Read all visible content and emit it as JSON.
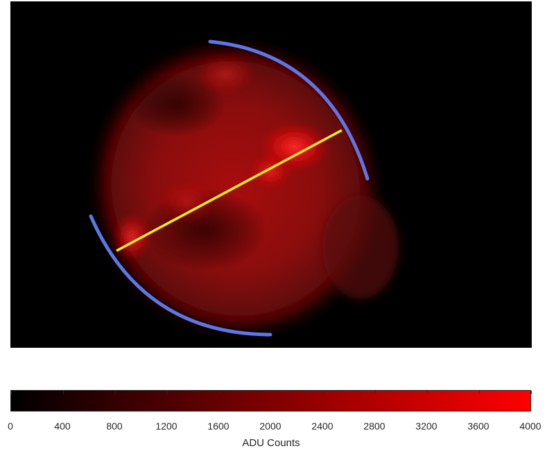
{
  "image": {
    "description_colors": {
      "nebula": "#c81414",
      "arc": "#5a78e6",
      "diameter_line": "#f5f01e",
      "background": "#000000"
    }
  },
  "colorbar": {
    "label": "ADU Counts",
    "min": 0,
    "max": 4000,
    "ticks": [
      "0",
      "400",
      "800",
      "1200",
      "1600",
      "2000",
      "2400",
      "2800",
      "3200",
      "3600",
      "4000"
    ],
    "gradient_start": "#000000",
    "gradient_end": "#ff0000"
  }
}
